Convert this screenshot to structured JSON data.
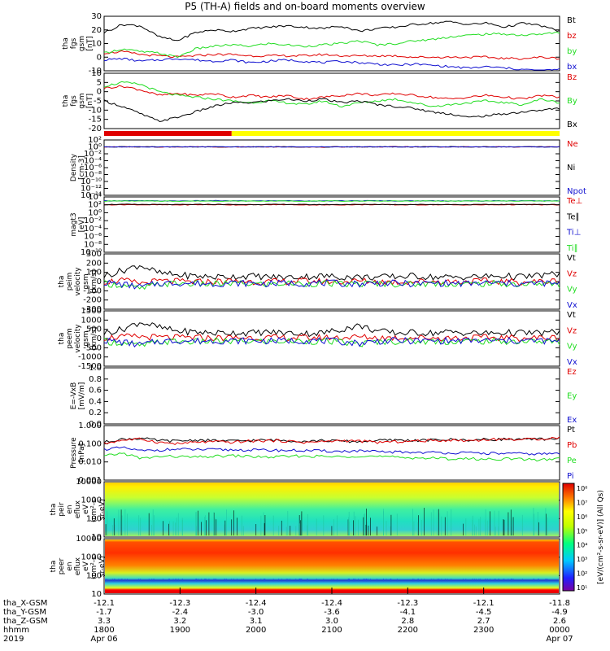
{
  "title": "P5 (TH-A) fields and on-board moments overview",
  "colors": {
    "black": "#000000",
    "red": "#e00000",
    "green": "#22dd22",
    "blue": "#1010d0",
    "yellow": "#ffff00"
  },
  "chart_data": [
    {
      "id": "fgs1",
      "type": "line",
      "ylabel": [
        "tha",
        "fgs",
        "gsm",
        "[nT]"
      ],
      "ylim": [
        -10,
        30
      ],
      "yticks": [
        "30",
        "20",
        "10",
        "0",
        "-10"
      ],
      "series": [
        {
          "name": "Bt",
          "color": "black",
          "values": [
            18,
            24,
            23,
            15,
            12,
            18,
            20,
            19,
            21,
            22,
            23,
            22,
            21,
            23,
            19,
            21,
            22,
            24,
            25,
            26,
            24,
            25,
            22,
            25,
            23,
            19
          ]
        },
        {
          "name": "bz",
          "color": "red",
          "values": [
            3,
            4,
            2,
            1,
            0,
            1,
            2,
            2,
            1,
            1,
            1,
            1,
            2,
            1,
            1,
            1,
            1,
            0,
            0,
            0,
            0,
            0,
            -1,
            -1,
            0,
            -1
          ]
        },
        {
          "name": "by",
          "color": "green",
          "values": [
            3,
            6,
            4,
            3,
            0,
            6,
            8,
            9,
            8,
            10,
            9,
            8,
            9,
            10,
            12,
            9,
            10,
            12,
            13,
            15,
            16,
            17,
            17,
            16,
            17,
            18
          ]
        },
        {
          "name": "bx",
          "color": "blue",
          "values": [
            -2,
            -1,
            -3,
            -2,
            -1,
            -2,
            -3,
            -2,
            -4,
            -3,
            -2,
            -3,
            -4,
            -3,
            -4,
            -5,
            -6,
            -5,
            -6,
            -7,
            -8,
            -7,
            -8,
            -9,
            -10,
            -9
          ]
        }
      ]
    },
    {
      "id": "fgs2",
      "type": "line",
      "ylabel": [
        "tha",
        "fgs",
        "gsm",
        "[nT]"
      ],
      "ylim": [
        -20,
        10
      ],
      "yticks": [
        "10",
        "5",
        "0",
        "-5",
        "-10",
        "-15",
        "-20"
      ],
      "series": [
        {
          "name": "Bz",
          "color": "red",
          "values": [
            2,
            3,
            1,
            -2,
            -1,
            -2,
            -1,
            -3,
            -2,
            -3,
            -2,
            -4,
            -3,
            -2,
            -1,
            -2,
            -1,
            -2,
            -3,
            -4,
            -3,
            -2,
            -3,
            -4,
            -2,
            -3
          ]
        },
        {
          "name": "By",
          "color": "green",
          "values": [
            3,
            5,
            4,
            0,
            -2,
            -3,
            -4,
            -5,
            -6,
            -5,
            -6,
            -7,
            -5,
            -8,
            -6,
            -5,
            -4,
            -6,
            -8,
            -7,
            -6,
            -5,
            -6,
            -7,
            -4,
            -6
          ]
        },
        {
          "name": "Bx",
          "color": "black",
          "values": [
            -5,
            -8,
            -12,
            -16,
            -14,
            -11,
            -8,
            -6,
            -6,
            -5,
            -4,
            -5,
            -4,
            -6,
            -5,
            -7,
            -8,
            -9,
            -11,
            -12,
            -14,
            -13,
            -12,
            -11,
            -10,
            -9
          ]
        }
      ]
    },
    {
      "id": "density",
      "type": "line",
      "ylabel": [
        "Density",
        "[cm-3]"
      ],
      "scale": "log",
      "ylim": [
        1e-14,
        100
      ],
      "yticks": [
        "10²",
        "10⁰",
        "10⁻²",
        "10⁻⁴",
        "10⁻⁶",
        "10⁻⁸",
        "10⁻¹⁰",
        "10⁻¹²",
        "10⁻¹⁴"
      ],
      "series": [
        {
          "name": "Ne",
          "color": "red",
          "values": [
            1,
            1,
            1,
            0.9,
            1,
            1.1,
            1,
            0.9,
            1,
            1,
            1,
            1,
            0.8,
            1,
            1,
            1,
            1.1,
            1,
            1,
            1,
            1,
            1,
            1,
            1,
            1,
            1
          ]
        },
        {
          "name": "Ni",
          "color": "black",
          "values": [
            1,
            1.1,
            1,
            0.9,
            1,
            1,
            1,
            0.9,
            1,
            1,
            1.1,
            1,
            0.9,
            1,
            1,
            1,
            1,
            1,
            1,
            1.1,
            1,
            1,
            1,
            1,
            1,
            1
          ]
        },
        {
          "name": "Npot",
          "color": "blue",
          "values": [
            1,
            1,
            1,
            1,
            1,
            1,
            1,
            1,
            1,
            1,
            1,
            1,
            1,
            1,
            1,
            1,
            1,
            1,
            1,
            1,
            1,
            1,
            1,
            1,
            1,
            1
          ]
        }
      ]
    },
    {
      "id": "temp",
      "type": "line",
      "ylabel": [
        "magt3",
        "[eV]"
      ],
      "scale": "log",
      "ylim": [
        1e-10,
        10000.0
      ],
      "yticks": [
        "10⁴",
        "10²",
        "10⁰",
        "10⁻²",
        "10⁻⁴",
        "10⁻⁶",
        "10⁻⁸",
        "10⁻¹⁰"
      ],
      "series": [
        {
          "name": "Te⊥",
          "color": "red",
          "values": [
            100,
            110,
            105,
            100,
            95,
            105,
            110,
            100,
            100,
            105,
            110,
            100,
            95,
            100,
            105,
            110,
            100,
            100,
            105,
            100,
            95,
            100,
            105,
            110,
            100,
            100
          ]
        },
        {
          "name": "Te∥",
          "color": "black",
          "values": [
            120,
            130,
            125,
            120,
            115,
            125,
            130,
            120,
            120,
            125,
            130,
            120,
            115,
            120,
            125,
            130,
            120,
            120,
            125,
            120,
            115,
            120,
            125,
            130,
            120,
            120
          ]
        },
        {
          "name": "Ti⊥",
          "color": "blue",
          "values": [
            1000,
            1100,
            1050,
            1000,
            950,
            1050,
            1100,
            1000,
            1000,
            1050,
            1100,
            1000,
            950,
            1000,
            1050,
            1100,
            1000,
            1000,
            1050,
            1000,
            950,
            1000,
            1050,
            1100,
            1000,
            1000
          ]
        },
        {
          "name": "Ti∥",
          "color": "green",
          "values": [
            900,
            950,
            920,
            900,
            880,
            920,
            950,
            900,
            900,
            920,
            950,
            900,
            880,
            900,
            920,
            950,
            900,
            900,
            920,
            900,
            880,
            900,
            920,
            950,
            900,
            900
          ]
        }
      ]
    },
    {
      "id": "peim",
      "type": "line",
      "ylabel": [
        "tha",
        "peim",
        "velocity",
        "gsm",
        "[km/s]"
      ],
      "ylim": [
        -300,
        300
      ],
      "yticks": [
        "300",
        "200",
        "100",
        "0",
        "-100",
        "-200",
        "-300"
      ],
      "series": [
        {
          "name": "Vt",
          "color": "black",
          "values": [
            60,
            120,
            180,
            90,
            70,
            60,
            50,
            55,
            60,
            50,
            45,
            55,
            60,
            50,
            50,
            45,
            55,
            60,
            50,
            45,
            50,
            55,
            60,
            50,
            70,
            80
          ]
        },
        {
          "name": "Vz",
          "color": "red",
          "values": [
            0,
            10,
            -20,
            5,
            0,
            -5,
            0,
            5,
            0,
            -5,
            0,
            5,
            0,
            0,
            5,
            0,
            -5,
            0,
            5,
            0,
            0,
            5,
            0,
            -5,
            0,
            10
          ]
        },
        {
          "name": "Vy",
          "color": "green",
          "values": [
            -20,
            -40,
            -80,
            -30,
            -20,
            -25,
            -30,
            -20,
            -25,
            -30,
            -20,
            -25,
            -20,
            -30,
            -25,
            -20,
            -25,
            -30,
            -20,
            -25,
            -30,
            -20,
            -25,
            -30,
            -20,
            -40
          ]
        },
        {
          "name": "Vx",
          "color": "blue",
          "values": [
            -10,
            -30,
            -60,
            -20,
            -15,
            -20,
            -25,
            -15,
            -20,
            -25,
            -15,
            -20,
            -15,
            -20,
            -25,
            -15,
            -20,
            -25,
            -15,
            -20,
            -25,
            -15,
            -20,
            -25,
            -15,
            -30
          ]
        }
      ]
    },
    {
      "id": "peem",
      "type": "line",
      "ylabel": [
        "tha",
        "peem",
        "velocity",
        "gsm",
        "[km/s]"
      ],
      "ylim": [
        -1500,
        1500
      ],
      "yticks": [
        "1500",
        "1000",
        "500",
        "0",
        "-500",
        "-1000",
        "-1500"
      ],
      "series": [
        {
          "name": "Vt",
          "color": "black",
          "values": [
            300,
            500,
            900,
            600,
            400,
            350,
            300,
            320,
            300,
            350,
            300,
            280,
            300,
            500,
            700,
            400,
            300,
            320,
            300,
            350,
            300,
            280,
            320,
            300,
            300,
            350
          ]
        },
        {
          "name": "Vz",
          "color": "red",
          "values": [
            50,
            80,
            100,
            60,
            40,
            50,
            30,
            40,
            50,
            40,
            30,
            40,
            50,
            60,
            80,
            50,
            40,
            50,
            40,
            30,
            40,
            50,
            40,
            30,
            40,
            50
          ]
        },
        {
          "name": "Vy",
          "color": "green",
          "values": [
            -150,
            -250,
            -400,
            -200,
            -150,
            -180,
            -150,
            -170,
            -150,
            -160,
            -150,
            -140,
            -150,
            -200,
            -300,
            -180,
            -150,
            -160,
            -150,
            -170,
            -150,
            -140,
            -160,
            -150,
            -150,
            -200
          ]
        },
        {
          "name": "Vx",
          "color": "blue",
          "values": [
            -100,
            -200,
            -350,
            -150,
            -120,
            -140,
            -120,
            -130,
            -120,
            -130,
            -120,
            -110,
            -120,
            -180,
            -250,
            -140,
            -120,
            -130,
            -120,
            -130,
            -120,
            -110,
            -130,
            -120,
            -120,
            -180
          ]
        }
      ]
    },
    {
      "id": "efield",
      "type": "line",
      "ylabel": [
        "E=-VxB",
        "[mV/m]"
      ],
      "ylim": [
        0,
        1
      ],
      "yticks": [
        "1.0",
        "0.8",
        "0.6",
        "0.4",
        "0.2",
        "0.0"
      ],
      "series": [
        {
          "name": "Ez",
          "color": "red",
          "values": []
        },
        {
          "name": "Ey",
          "color": "green",
          "values": []
        },
        {
          "name": "Ex",
          "color": "blue",
          "values": []
        }
      ]
    },
    {
      "id": "pressure",
      "type": "line",
      "ylabel": [
        "Pressure",
        "[nPa]"
      ],
      "scale": "log",
      "ylim": [
        0.001,
        1
      ],
      "yticks": [
        "1.000",
        "0.100",
        "0.010",
        "0.001"
      ],
      "series": [
        {
          "name": "Pt",
          "color": "black",
          "values": [
            0.12,
            0.18,
            0.2,
            0.15,
            0.14,
            0.16,
            0.15,
            0.14,
            0.15,
            0.16,
            0.15,
            0.14,
            0.15,
            0.14,
            0.13,
            0.15,
            0.16,
            0.15,
            0.16,
            0.17,
            0.16,
            0.17,
            0.18,
            0.17,
            0.18,
            0.2
          ]
        },
        {
          "name": "Pb",
          "color": "red",
          "values": [
            0.1,
            0.16,
            0.18,
            0.12,
            0.1,
            0.12,
            0.13,
            0.12,
            0.14,
            0.15,
            0.14,
            0.12,
            0.13,
            0.15,
            0.14,
            0.12,
            0.13,
            0.14,
            0.15,
            0.16,
            0.15,
            0.17,
            0.18,
            0.17,
            0.19,
            0.22
          ]
        },
        {
          "name": "Pe",
          "color": "green",
          "values": [
            0.02,
            0.03,
            0.015,
            0.02,
            0.02,
            0.018,
            0.02,
            0.022,
            0.02,
            0.018,
            0.02,
            0.021,
            0.02,
            0.019,
            0.022,
            0.02,
            0.018,
            0.017,
            0.016,
            0.015,
            0.015,
            0.014,
            0.015,
            0.014,
            0.013,
            0.015
          ]
        },
        {
          "name": "Pi",
          "color": "blue",
          "values": [
            0.05,
            0.06,
            0.04,
            0.045,
            0.05,
            0.048,
            0.047,
            0.046,
            0.045,
            0.044,
            0.043,
            0.042,
            0.04,
            0.038,
            0.04,
            0.036,
            0.035,
            0.034,
            0.033,
            0.032,
            0.031,
            0.03,
            0.029,
            0.028,
            0.027,
            0.03
          ]
        }
      ]
    },
    {
      "id": "peir",
      "type": "heatmap",
      "ylabel": [
        "tha",
        "peir",
        "en",
        "eflux",
        "eV",
        "(cm²-s-",
        "sr-eV)"
      ],
      "scale": "log",
      "ylim": [
        5,
        30000
      ],
      "yticks": [
        "10000",
        "1000",
        "100",
        "10"
      ]
    },
    {
      "id": "peer",
      "type": "heatmap",
      "ylabel": [
        "tha",
        "peer",
        "en",
        "eflux",
        "eV",
        "(cm²-s-",
        "sr-eV)"
      ],
      "scale": "log",
      "ylim": [
        5,
        30000
      ],
      "yticks": [
        "10000",
        "1000",
        "100",
        "10"
      ]
    }
  ],
  "colorbar": {
    "label": "[eV/(cm²-s-sr-eV)] (All Qs)",
    "ticks": [
      "10⁸",
      "10⁷",
      "10⁶",
      "10⁵",
      "10⁴",
      "10³",
      "10²",
      "10¹"
    ]
  },
  "mode_bar": {
    "segments": [
      {
        "color": "red",
        "from": 0,
        "to": 0.28
      },
      {
        "color": "yellow",
        "from": 0.28,
        "to": 1
      }
    ]
  },
  "x_axis": {
    "row_labels": [
      "tha_X-GSM",
      "tha_Y-GSM",
      "tha_Z-GSM",
      "hhmm",
      "2019"
    ],
    "ticks": [
      {
        "x": "-12.1",
        "y": "-1.7",
        "z": "3.3",
        "hhmm": "1800",
        "date": "Apr 06"
      },
      {
        "x": "-12.3",
        "y": "-2.4",
        "z": "3.2",
        "hhmm": "1900",
        "date": ""
      },
      {
        "x": "-12.4",
        "y": "-3.0",
        "z": "3.1",
        "hhmm": "2000",
        "date": ""
      },
      {
        "x": "-12.4",
        "y": "-3.6",
        "z": "3.0",
        "hhmm": "2100",
        "date": ""
      },
      {
        "x": "-12.3",
        "y": "-4.1",
        "z": "2.8",
        "hhmm": "2200",
        "date": ""
      },
      {
        "x": "-12.1",
        "y": "-4.5",
        "z": "2.7",
        "hhmm": "2300",
        "date": ""
      },
      {
        "x": "-11.8",
        "y": "-4.9",
        "z": "2.6",
        "hhmm": "0000",
        "date": "Apr 07"
      }
    ]
  }
}
